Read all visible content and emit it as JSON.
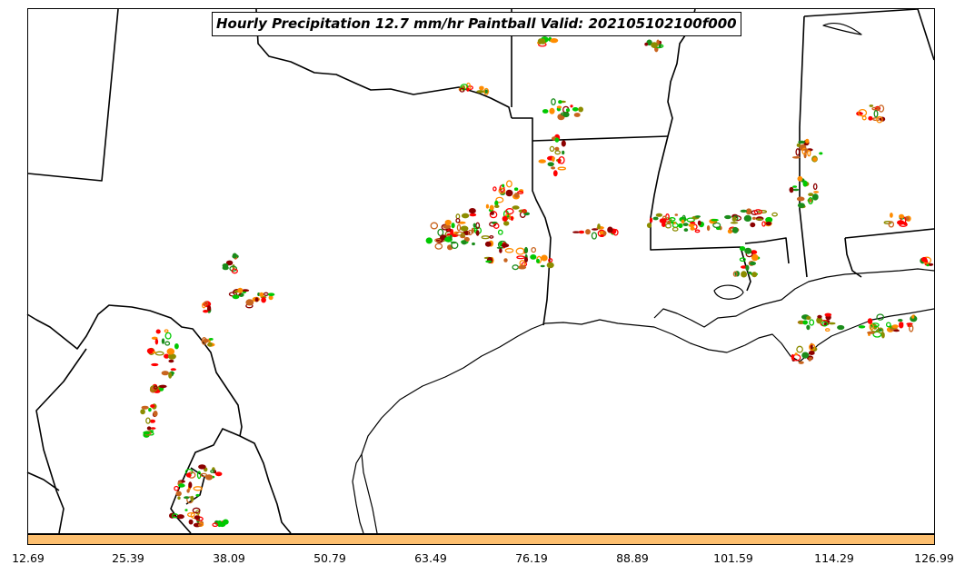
{
  "title": "Hourly Precipitation 12.7 mm/hr Paintball Valid: 202105102100f000",
  "colorbar": {
    "ticks": [
      "12.69",
      "25.39",
      "38.09",
      "50.79",
      "63.49",
      "76.19",
      "88.89",
      "101.59",
      "114.29",
      "126.99"
    ],
    "fill_color": "#fdbf6f"
  },
  "paintball_colors": [
    "#00c800",
    "#1a8c1a",
    "#8c8c00",
    "#ff8c00",
    "#ff0000",
    "#8b0000",
    "#c8641e"
  ],
  "map_layers": [
    "state-boundaries",
    "coastline"
  ]
}
